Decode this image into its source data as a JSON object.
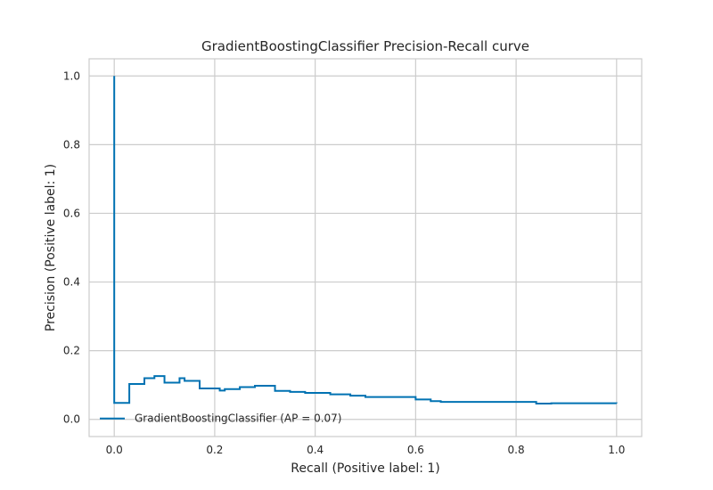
{
  "chart_data": {
    "type": "line",
    "title": "GradientBoostingClassifier Precision-Recall curve",
    "xlabel": "Recall (Positive label: 1)",
    "ylabel": "Precision (Positive label: 1)",
    "xlim": [
      -0.05,
      1.05
    ],
    "ylim": [
      -0.05,
      1.05
    ],
    "xticks": [
      0.0,
      0.2,
      0.4,
      0.6,
      0.8,
      1.0
    ],
    "xtick_labels": [
      "0.0",
      "0.2",
      "0.4",
      "0.6",
      "0.8",
      "1.0"
    ],
    "yticks": [
      0.0,
      0.2,
      0.4,
      0.6,
      0.8,
      1.0
    ],
    "ytick_labels": [
      "0.0",
      "0.2",
      "0.4",
      "0.6",
      "0.8",
      "1.0"
    ],
    "grid": true,
    "legend_position": "lower-left",
    "series": [
      {
        "name": "GradientBoostingClassifier (AP = 0.07)",
        "color": "#0072b2",
        "drawstyle": "steps-post",
        "recall": [
          1.0,
          0.87,
          0.84,
          0.65,
          0.63,
          0.6,
          0.5,
          0.47,
          0.43,
          0.38,
          0.35,
          0.32,
          0.28,
          0.25,
          0.22,
          0.21,
          0.17,
          0.14,
          0.13,
          0.1,
          0.08,
          0.06,
          0.03,
          0.03,
          0.0,
          0.0
        ],
        "precision": [
          0.047,
          0.046,
          0.051,
          0.053,
          0.058,
          0.065,
          0.069,
          0.073,
          0.077,
          0.08,
          0.083,
          0.098,
          0.094,
          0.088,
          0.084,
          0.09,
          0.112,
          0.12,
          0.107,
          0.126,
          0.12,
          0.103,
          0.088,
          0.048,
          0.055,
          1.0
        ]
      }
    ]
  }
}
